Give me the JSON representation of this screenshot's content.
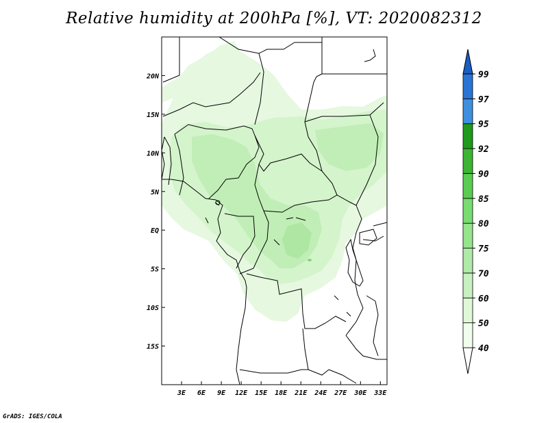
{
  "title": "Relative humidity at 200hPa [%], VT: 2020082312",
  "footer": "GrADS: IGES/COLA",
  "map": {
    "region": "Central Africa",
    "lon_range": [
      0,
      34
    ],
    "lat_range": [
      -20,
      25
    ],
    "lon_ticks": [
      "3E",
      "6E",
      "9E",
      "12E",
      "15E",
      "18E",
      "21E",
      "24E",
      "27E",
      "30E",
      "33E"
    ],
    "lat_ticks": [
      "20N",
      "15N",
      "10N",
      "5N",
      "EQ",
      "5S",
      "10S",
      "15S"
    ]
  },
  "colorbar": {
    "levels": [
      "40",
      "50",
      "60",
      "70",
      "75",
      "80",
      "85",
      "90",
      "92",
      "95",
      "97",
      "99"
    ],
    "colors": [
      "#f0fcec",
      "#e0f8d8",
      "#c8f0c0",
      "#b0eaa8",
      "#96e48c",
      "#78dc70",
      "#5acc52",
      "#3cb434",
      "#1f9a1c",
      "#3e8fe0",
      "#2a74d4",
      "#1a5ec4"
    ],
    "below_color": "#ffffff"
  }
}
